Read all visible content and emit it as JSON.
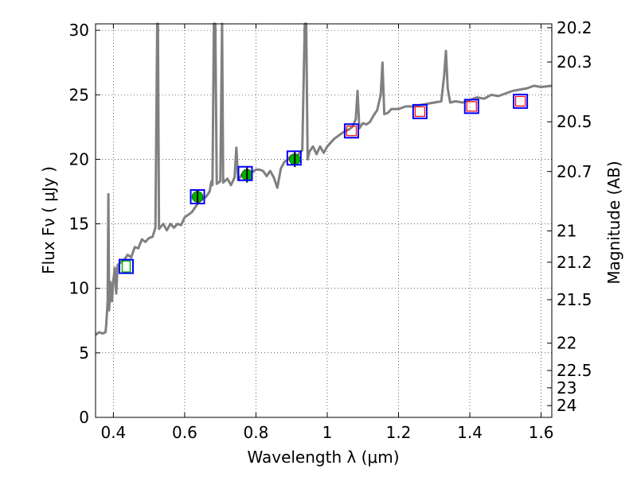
{
  "chart_data": {
    "type": "line",
    "title": "",
    "xlabel": "Wavelength  λ (μm)",
    "ylabel": "Flux  Fν  ( μJy )",
    "ylabel_right": "Magnitude (AB)",
    "xlim": [
      0.35,
      1.63
    ],
    "ylim": [
      0,
      30.5
    ],
    "grid": true,
    "x_ticks": [
      0.4,
      0.6,
      0.8,
      1.0,
      1.2,
      1.4,
      1.6
    ],
    "x_tick_labels": [
      "0.4",
      "0.6",
      "0.8",
      "1",
      "1.2",
      "1.4",
      "1.6"
    ],
    "y_ticks": [
      0,
      5,
      10,
      15,
      20,
      25,
      30
    ],
    "y_tick_labels": [
      "0",
      "5",
      "10",
      "15",
      "20",
      "25",
      "30"
    ],
    "mag_ticks": [
      20.2,
      20.3,
      20.5,
      20.7,
      21,
      21.2,
      21.5,
      22,
      22.5,
      23,
      24
    ],
    "mag_tick_labels": [
      "20.2",
      "20.3",
      "20.5",
      "20.7",
      "21",
      "21.2",
      "21.5",
      "22",
      "22.5",
      "23",
      "24"
    ],
    "spectrum": {
      "color": "#808080",
      "points": [
        [
          0.35,
          6.4
        ],
        [
          0.36,
          6.6
        ],
        [
          0.37,
          6.5
        ],
        [
          0.378,
          6.6
        ],
        [
          0.38,
          7.2
        ],
        [
          0.384,
          9.0
        ],
        [
          0.386,
          17.3
        ],
        [
          0.388,
          8.3
        ],
        [
          0.392,
          10.5
        ],
        [
          0.396,
          9.0
        ],
        [
          0.4,
          10.6
        ],
        [
          0.404,
          11.6
        ],
        [
          0.408,
          9.6
        ],
        [
          0.412,
          11.8
        ],
        [
          0.42,
          12.0
        ],
        [
          0.43,
          12.2
        ],
        [
          0.44,
          12.6
        ],
        [
          0.45,
          12.4
        ],
        [
          0.46,
          13.2
        ],
        [
          0.47,
          13.1
        ],
        [
          0.48,
          13.8
        ],
        [
          0.49,
          13.6
        ],
        [
          0.5,
          13.9
        ],
        [
          0.51,
          14.0
        ],
        [
          0.518,
          14.7
        ],
        [
          0.523,
          30.5
        ],
        [
          0.525,
          30.5
        ],
        [
          0.528,
          14.6
        ],
        [
          0.54,
          15.0
        ],
        [
          0.55,
          14.5
        ],
        [
          0.56,
          15.0
        ],
        [
          0.57,
          14.7
        ],
        [
          0.58,
          15.0
        ],
        [
          0.59,
          14.9
        ],
        [
          0.6,
          15.5
        ],
        [
          0.62,
          15.9
        ],
        [
          0.64,
          16.7
        ],
        [
          0.65,
          16.9
        ],
        [
          0.66,
          17.1
        ],
        [
          0.67,
          17.5
        ],
        [
          0.675,
          18.3
        ],
        [
          0.678,
          18.0
        ],
        [
          0.682,
          30.5
        ],
        [
          0.686,
          30.5
        ],
        [
          0.69,
          18.1
        ],
        [
          0.7,
          18.3
        ],
        [
          0.705,
          30.5
        ],
        [
          0.708,
          18.2
        ],
        [
          0.72,
          18.5
        ],
        [
          0.73,
          18.0
        ],
        [
          0.74,
          18.6
        ],
        [
          0.745,
          20.9
        ],
        [
          0.75,
          18.4
        ],
        [
          0.76,
          18.8
        ],
        [
          0.77,
          18.8
        ],
        [
          0.78,
          18.9
        ],
        [
          0.79,
          19.0
        ],
        [
          0.8,
          19.2
        ],
        [
          0.81,
          19.2
        ],
        [
          0.82,
          19.1
        ],
        [
          0.83,
          18.7
        ],
        [
          0.84,
          19.1
        ],
        [
          0.85,
          18.6
        ],
        [
          0.86,
          17.8
        ],
        [
          0.87,
          19.3
        ],
        [
          0.88,
          19.8
        ],
        [
          0.89,
          20.0
        ],
        [
          0.9,
          20.3
        ],
        [
          0.91,
          20.0
        ],
        [
          0.92,
          20.4
        ],
        [
          0.93,
          20.7
        ],
        [
          0.937,
          30.5
        ],
        [
          0.941,
          30.5
        ],
        [
          0.945,
          20.0
        ],
        [
          0.95,
          20.6
        ],
        [
          0.96,
          21.0
        ],
        [
          0.97,
          20.4
        ],
        [
          0.98,
          21.0
        ],
        [
          0.99,
          20.5
        ],
        [
          1.0,
          21.0
        ],
        [
          1.01,
          21.3
        ],
        [
          1.02,
          21.6
        ],
        [
          1.03,
          21.8
        ],
        [
          1.04,
          22.0
        ],
        [
          1.05,
          22.2
        ],
        [
          1.06,
          22.3
        ],
        [
          1.07,
          22.5
        ],
        [
          1.08,
          23.1
        ],
        [
          1.085,
          25.3
        ],
        [
          1.09,
          22.4
        ],
        [
          1.1,
          22.8
        ],
        [
          1.11,
          22.7
        ],
        [
          1.12,
          22.9
        ],
        [
          1.13,
          23.4
        ],
        [
          1.14,
          23.8
        ],
        [
          1.15,
          25.0
        ],
        [
          1.155,
          27.5
        ],
        [
          1.16,
          23.5
        ],
        [
          1.17,
          23.6
        ],
        [
          1.18,
          23.9
        ],
        [
          1.2,
          23.9
        ],
        [
          1.22,
          24.1
        ],
        [
          1.24,
          24.1
        ],
        [
          1.26,
          24.2
        ],
        [
          1.28,
          24.3
        ],
        [
          1.3,
          24.4
        ],
        [
          1.32,
          24.5
        ],
        [
          1.328,
          26.5
        ],
        [
          1.333,
          28.4
        ],
        [
          1.338,
          25.5
        ],
        [
          1.345,
          24.4
        ],
        [
          1.36,
          24.5
        ],
        [
          1.38,
          24.4
        ],
        [
          1.4,
          24.6
        ],
        [
          1.42,
          24.8
        ],
        [
          1.44,
          24.7
        ],
        [
          1.46,
          25.0
        ],
        [
          1.48,
          24.9
        ],
        [
          1.5,
          25.1
        ],
        [
          1.52,
          25.3
        ],
        [
          1.54,
          25.4
        ],
        [
          1.56,
          25.5
        ],
        [
          1.58,
          25.7
        ],
        [
          1.6,
          25.6
        ],
        [
          1.63,
          25.7
        ]
      ]
    },
    "photometry_green": {
      "color": "#00b000",
      "points": [
        {
          "x": 0.636,
          "y": 17.1,
          "err": 0.5
        },
        {
          "x": 0.775,
          "y": 18.8,
          "err": 0.6
        },
        {
          "x": 0.909,
          "y": 20.0,
          "err": 0.6
        }
      ]
    },
    "model_squares_blue": {
      "color": "#0000ff",
      "points": [
        {
          "x": 0.436,
          "y": 11.7
        },
        {
          "x": 0.636,
          "y": 17.1
        },
        {
          "x": 0.77,
          "y": 18.9
        },
        {
          "x": 0.907,
          "y": 20.1
        },
        {
          "x": 1.068,
          "y": 22.2
        },
        {
          "x": 1.26,
          "y": 23.7
        },
        {
          "x": 1.405,
          "y": 24.1
        },
        {
          "x": 1.542,
          "y": 24.5
        }
      ]
    },
    "model_squares_red": {
      "color": "#ff0000",
      "points": [
        {
          "x": 1.068,
          "y": 22.2
        },
        {
          "x": 1.26,
          "y": 23.7
        },
        {
          "x": 1.405,
          "y": 24.1
        },
        {
          "x": 1.542,
          "y": 24.5
        }
      ]
    },
    "model_squares_inner_green": {
      "color": "#00b000",
      "points": [
        {
          "x": 0.436,
          "y": 11.7
        }
      ]
    }
  }
}
